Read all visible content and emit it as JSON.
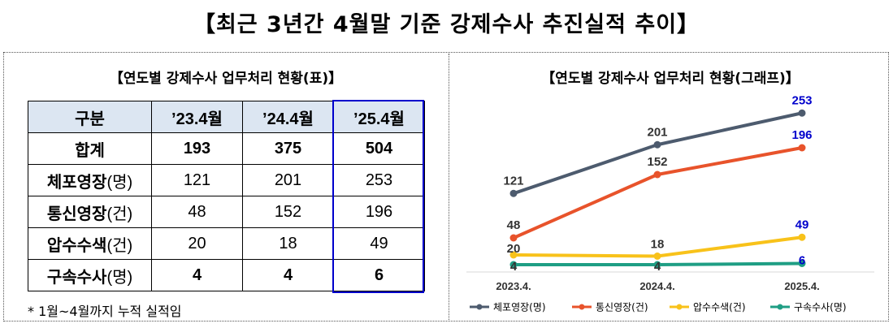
{
  "main_title": "【최근 3년간 4월말 기준 강제수사 추진실적 추이】",
  "table_title": "【연도별 강제수사 업무처리 현황(표)】",
  "chart_title": "【연도별 강제수사 업무처리 현황(그래프)】",
  "table": {
    "header": [
      "구분",
      "’23.4월",
      "’24.4월",
      "’25.4월"
    ],
    "rows": [
      {
        "label": "합계",
        "unit": "",
        "values": [
          "193",
          "375",
          "504"
        ]
      },
      {
        "label": "체포영장",
        "unit": "(명)",
        "values": [
          "121",
          "201",
          "253"
        ]
      },
      {
        "label": "통신영장",
        "unit": "(건)",
        "values": [
          "48",
          "152",
          "196"
        ]
      },
      {
        "label": "압수수색",
        "unit": "(건)",
        "values": [
          "20",
          "18",
          "49"
        ]
      },
      {
        "label": "구속수사",
        "unit": "(명)",
        "values": [
          "4",
          "4",
          "6"
        ]
      }
    ]
  },
  "footnote": "* 1월~4월까지 누적 실적임",
  "chart_data": {
    "type": "line",
    "title": "【연도별 강제수사 업무처리 현황(그래프)】",
    "categories": [
      "2023.4.",
      "2024.4.",
      "2025.4."
    ],
    "series": [
      {
        "name": "체포영장(명)",
        "values": [
          121,
          201,
          253
        ],
        "color": "#4d5b6e"
      },
      {
        "name": "통신영장(건)",
        "values": [
          48,
          152,
          196
        ],
        "color": "#e8532b"
      },
      {
        "name": "압수수색(건)",
        "values": [
          20,
          18,
          49
        ],
        "color": "#f8c21a"
      },
      {
        "name": "구속수사(명)",
        "values": [
          4,
          4,
          6
        ],
        "color": "#1f9e84"
      }
    ],
    "highlight_color": "#0000cc",
    "label_color": "#333333",
    "legend_position": "bottom",
    "grid": false
  }
}
